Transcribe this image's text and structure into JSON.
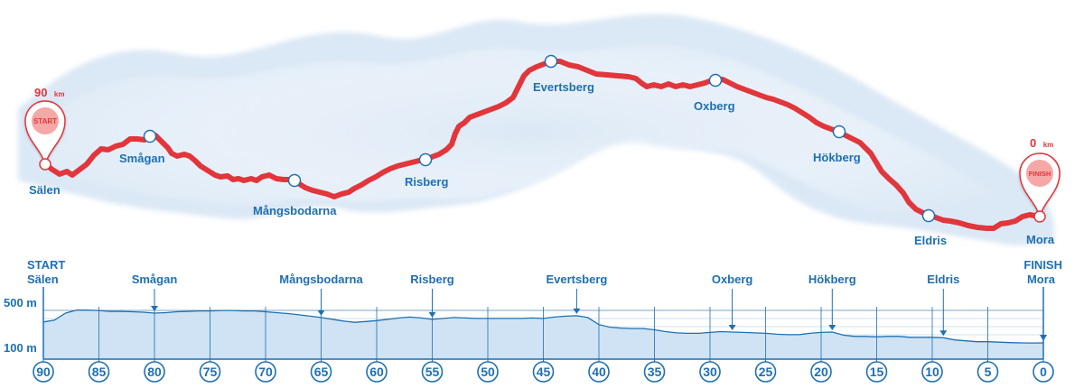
{
  "route": {
    "start_distance_value": "90",
    "finish_distance_value": "0",
    "distance_unit": "km",
    "start_pin_label": "START",
    "finish_pin_label": "FINISH",
    "start_place": "Sälen",
    "finish_place": "Mora",
    "checkpoints": [
      "Smågan",
      "Mångsbodarna",
      "Risberg",
      "Evertsberg",
      "Oxberg",
      "Hökberg",
      "Eldris"
    ]
  },
  "profile": {
    "start_label": "START",
    "start_place": "Sälen",
    "finish_label": "FINISH",
    "finish_place": "Mora",
    "y_labels": [
      "500 m",
      "100 m"
    ],
    "km_ticks": [
      "90",
      "85",
      "80",
      "75",
      "70",
      "65",
      "60",
      "55",
      "50",
      "45",
      "40",
      "35",
      "30",
      "25",
      "20",
      "15",
      "10",
      "5",
      "0"
    ],
    "station_labels": [
      {
        "name": "Smågan",
        "km": 80
      },
      {
        "name": "Mångsbodarna",
        "km": 65
      },
      {
        "name": "Risberg",
        "km": 55
      },
      {
        "name": "Evertsberg",
        "km": 42
      },
      {
        "name": "Oxberg",
        "km": 28
      },
      {
        "name": "Hökberg",
        "km": 19
      },
      {
        "name": "Eldris",
        "km": 9
      }
    ]
  },
  "colors": {
    "route_red": "#e1363b",
    "label_blue": "#1f6fb2",
    "profile_fill": "#cfe3f4",
    "profile_line": "#1f6fb2",
    "snow": "#e8f0f9"
  },
  "chart_data": {
    "type": "area",
    "x_unit": "km to finish",
    "y_unit": "m",
    "xlim": [
      90,
      0
    ],
    "x": [
      90,
      89,
      88,
      87,
      86,
      85,
      84,
      83,
      82,
      81,
      80,
      79,
      78,
      77,
      76,
      75,
      74,
      73,
      72,
      71,
      70,
      69,
      68,
      67,
      66,
      65,
      64,
      63,
      62,
      61,
      60,
      59,
      58,
      57,
      56,
      55,
      54,
      53,
      52,
      51,
      50,
      49,
      48,
      47,
      46,
      45,
      44,
      43,
      42,
      41,
      40,
      39,
      38,
      37,
      36,
      35,
      34,
      33,
      32,
      31,
      30,
      29,
      28,
      27,
      26,
      25,
      24,
      23,
      22,
      21,
      20,
      19,
      18,
      17,
      16,
      15,
      14,
      13,
      12,
      11,
      10,
      9,
      8,
      7,
      6,
      5,
      4,
      3,
      2,
      1,
      0
    ],
    "y": [
      400,
      420,
      500,
      535,
      535,
      530,
      520,
      520,
      515,
      510,
      500,
      505,
      515,
      520,
      525,
      525,
      530,
      530,
      525,
      525,
      515,
      505,
      495,
      480,
      465,
      450,
      430,
      410,
      395,
      405,
      415,
      430,
      445,
      455,
      445,
      430,
      440,
      450,
      445,
      440,
      440,
      440,
      440,
      440,
      445,
      440,
      455,
      465,
      470,
      450,
      370,
      340,
      330,
      325,
      325,
      310,
      290,
      275,
      270,
      270,
      280,
      290,
      285,
      280,
      275,
      270,
      260,
      255,
      255,
      270,
      280,
      285,
      250,
      235,
      235,
      230,
      235,
      235,
      225,
      225,
      225,
      220,
      195,
      185,
      175,
      175,
      170,
      165,
      162,
      160,
      162
    ]
  }
}
